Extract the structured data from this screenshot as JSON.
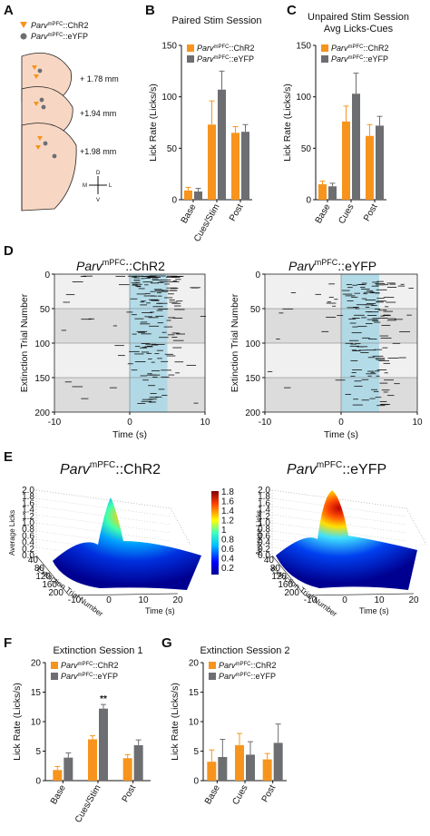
{
  "colors": {
    "chr2": "#f7941d",
    "eyfp": "#6d6e71",
    "stim": "#a9d8e6",
    "shade": "#dcdcdc",
    "light": "#f0f0f0",
    "brain": "#f7d7c4",
    "dot": "#111111"
  },
  "panels": {
    "A": {
      "label": "A",
      "legend_chr2_prefix": "Parv",
      "legend_chr2_sup": "mPFC",
      "legend_chr2_suffix": "::ChR2",
      "legend_eyfp_prefix": "Parv",
      "legend_eyfp_sup": "mPFC",
      "legend_eyfp_suffix": "::eYFP",
      "coords": [
        "+ 1.78 mm",
        "+1.94 mm",
        "+1.98 mm"
      ],
      "compass": [
        "D",
        "V",
        "M",
        "L"
      ]
    },
    "B": {
      "label": "B"
    },
    "C": {
      "label": "C"
    },
    "D": {
      "label": "D"
    },
    "E": {
      "label": "E"
    },
    "F": {
      "label": "F"
    },
    "G": {
      "label": "G"
    }
  },
  "headings": {
    "D_left_prefix": "Parv",
    "D_left_sup": "mPFC",
    "D_left_suffix": "::ChR2",
    "D_right_prefix": "Parv",
    "D_right_sup": "mPFC",
    "D_right_suffix": "::eYFP",
    "E_left_prefix": "Parv",
    "E_left_sup": "mPFC",
    "E_left_suffix": "::ChR2",
    "E_right_prefix": "Parv",
    "E_right_sup": "mPFC",
    "E_right_suffix": "::eYFP"
  },
  "e_labels": {
    "zlabel": "Average Licks",
    "ylabel": "Extinction Trial Number",
    "xlabel": "Time (s)",
    "zticks": [
      "0.0",
      "0.2",
      "0.4",
      "0.6",
      "0.8",
      "1.0",
      "1.2",
      "1.4",
      "1.6",
      "1.8",
      "2.0"
    ],
    "yticks": [
      "40",
      "80",
      "120",
      "160",
      "200"
    ],
    "xticks": [
      "-10",
      "0",
      "10",
      "20"
    ],
    "colorbar_ticks": [
      "1.8",
      "1.6",
      "1.4",
      "1.2",
      "1",
      "0.8",
      "0.6",
      "0.4",
      "0.2"
    ]
  },
  "chart_data": [
    {
      "panel": "B",
      "type": "bar",
      "title": "Paired Stim Session",
      "ylabel": "Lick Rate (Licks/s)",
      "ylim": [
        0,
        150
      ],
      "yticks": [
        0,
        50,
        100,
        150
      ],
      "categories": [
        "Base",
        "Cues/Stim",
        "Post"
      ],
      "legend_position": "top-left",
      "series": [
        {
          "name": "Parv mPFC::ChR2",
          "values": [
            9,
            73,
            65
          ],
          "errors": [
            3,
            23,
            6
          ]
        },
        {
          "name": "Parv mPFC::eYFP",
          "values": [
            8,
            107,
            66
          ],
          "errors": [
            3,
            18,
            7
          ]
        }
      ]
    },
    {
      "panel": "C",
      "type": "bar",
      "title": "Unpaired Stim Session",
      "subtitle": "Avg Licks-Cues",
      "ylabel": "Lick Rate (Licks/s)",
      "ylim": [
        0,
        150
      ],
      "yticks": [
        0,
        50,
        100,
        150
      ],
      "categories": [
        "Base",
        "Cues",
        "Post"
      ],
      "legend_position": "top-left",
      "series": [
        {
          "name": "Parv mPFC::ChR2",
          "values": [
            15,
            76,
            62
          ],
          "errors": [
            3,
            15,
            11
          ]
        },
        {
          "name": "Parv mPFC::eYFP",
          "values": [
            13,
            103,
            72
          ],
          "errors": [
            3,
            20,
            9
          ]
        }
      ]
    },
    {
      "panel": "D",
      "type": "scatter",
      "xlabel": "Time (s)",
      "ylabel": "Extinction Trial Number",
      "xlim": [
        -10,
        10
      ],
      "ylim": [
        200,
        0
      ],
      "xticks": [
        -10,
        0,
        10
      ],
      "yticks": [
        0,
        50,
        100,
        150,
        200
      ],
      "stim_window": [
        0,
        5
      ],
      "shaded_trial_blocks": [
        [
          50,
          100
        ],
        [
          150,
          200
        ]
      ]
    },
    {
      "panel": "F",
      "type": "bar",
      "title": "Extinction Session 1",
      "ylabel": "Lick Rate (Licks/s)",
      "ylim": [
        0,
        20
      ],
      "yticks": [
        0,
        5,
        10,
        15,
        20
      ],
      "categories": [
        "Base",
        "Cues/Stim",
        "Post"
      ],
      "legend_position": "top-left",
      "annotation": "**",
      "series": [
        {
          "name": "Parv mPFC::ChR2",
          "values": [
            1.8,
            7.0,
            3.8
          ],
          "errors": [
            0.6,
            0.6,
            0.6
          ]
        },
        {
          "name": "Parv mPFC::eYFP",
          "values": [
            3.9,
            12.2,
            6.0
          ],
          "errors": [
            0.8,
            0.7,
            0.9
          ]
        }
      ]
    },
    {
      "panel": "G",
      "type": "bar",
      "title": "Extinction Session 2",
      "ylabel": "Lick Rate (Licks/s)",
      "ylim": [
        0,
        20
      ],
      "yticks": [
        0,
        5,
        10,
        15,
        20
      ],
      "categories": [
        "Base",
        "Cues",
        "Post"
      ],
      "legend_position": "top-left",
      "series": [
        {
          "name": "Parv mPFC::ChR2",
          "values": [
            3.2,
            6.0,
            3.6
          ],
          "errors": [
            2.0,
            2.0,
            1.0
          ]
        },
        {
          "name": "Parv mPFC::eYFP",
          "values": [
            4.0,
            4.4,
            6.4
          ],
          "errors": [
            3.0,
            2.2,
            3.2
          ]
        }
      ]
    }
  ]
}
